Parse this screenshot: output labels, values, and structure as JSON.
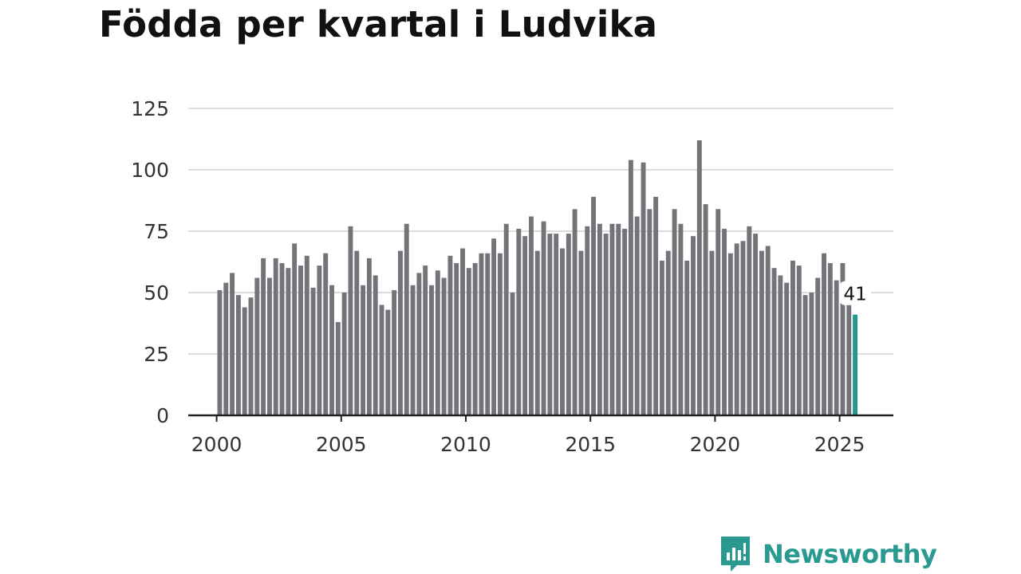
{
  "title": "Födda per kvartal i Ludvika",
  "brand": {
    "name": "Newsworthy",
    "color": "#2a9a90"
  },
  "chart_data": {
    "type": "bar",
    "title": "Födda per kvartal i Ludvika",
    "xlabel": "",
    "ylabel": "",
    "ylim": [
      0,
      125
    ],
    "y_ticks": [
      0,
      25,
      50,
      75,
      100,
      125
    ],
    "x_ticks": [
      2000,
      2005,
      2010,
      2015,
      2020,
      2025
    ],
    "x_range": [
      1999.75,
      2026.0
    ],
    "grid": true,
    "bar_color": "#74737a",
    "highlight_color": "#1e9a90",
    "start_year": 2000,
    "start_quarter": 1,
    "values": [
      51,
      54,
      58,
      49,
      44,
      48,
      56,
      64,
      56,
      64,
      62,
      60,
      70,
      61,
      65,
      52,
      61,
      66,
      53,
      38,
      50,
      77,
      67,
      53,
      64,
      57,
      45,
      43,
      51,
      67,
      78,
      53,
      58,
      61,
      53,
      59,
      56,
      65,
      62,
      68,
      60,
      62,
      66,
      66,
      72,
      66,
      78,
      50,
      76,
      73,
      81,
      67,
      79,
      74,
      74,
      68,
      74,
      84,
      67,
      77,
      89,
      78,
      74,
      78,
      78,
      76,
      104,
      81,
      103,
      84,
      89,
      63,
      67,
      84,
      78,
      63,
      73,
      112,
      86,
      67,
      84,
      76,
      66,
      70,
      71,
      77,
      74,
      67,
      69,
      60,
      57,
      54,
      63,
      61,
      49,
      50,
      56,
      66,
      62,
      55,
      62,
      46,
      41
    ],
    "annotation": {
      "text": "41",
      "target": "last"
    }
  }
}
